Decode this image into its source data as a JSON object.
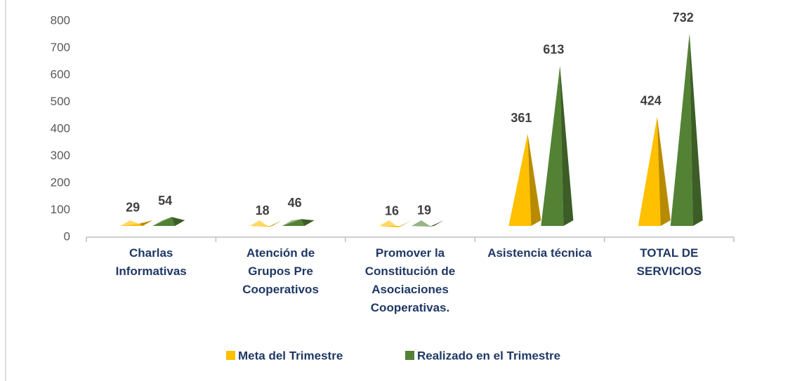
{
  "chart_data": {
    "type": "pyramid",
    "categories": [
      "Charlas Informativas",
      "Atención de Grupos Pre Cooperativos",
      "Promover la Constitución de Asociaciones Cooperativas.",
      "Asistencia técnica",
      "TOTAL DE SERVICIOS"
    ],
    "series": [
      {
        "name": "Meta del Trimestre",
        "color": "#ffc000",
        "values": [
          29,
          18,
          16,
          361,
          424
        ]
      },
      {
        "name": "Realizado  en el Trimestre",
        "color": "#548235",
        "values": [
          54,
          46,
          19,
          613,
          732
        ]
      }
    ],
    "ylim": [
      0,
      800
    ],
    "yticks": [
      0,
      100,
      200,
      300,
      400,
      500,
      600,
      700,
      800
    ],
    "legend": "bottom"
  }
}
